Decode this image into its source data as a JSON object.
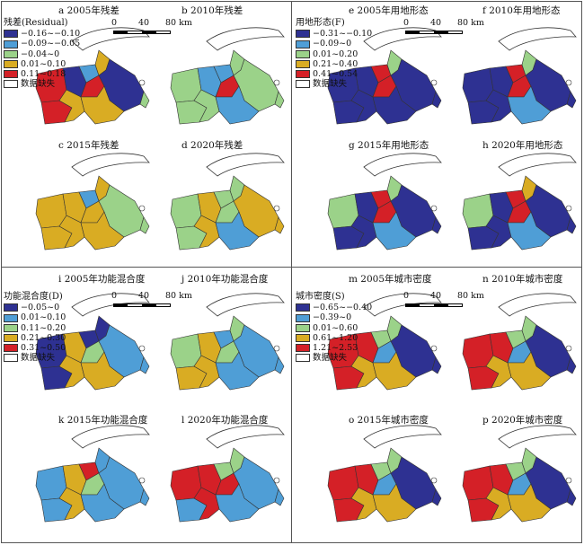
{
  "colors": {
    "blue_dark": "#2e3192",
    "blue_light": "#4f9ed6",
    "green": "#9bd289",
    "yellow": "#d9ac23",
    "red": "#d42027",
    "nodata": "#ffffff"
  },
  "scale_bar": {
    "zero": "0",
    "mid": "40",
    "end": "80 km"
  },
  "legends": {
    "residual": {
      "title": "残差(Residual)",
      "items": [
        "−0.16~−0.10",
        "−0.09~−0.05",
        "−0.04~0",
        "0.01~0.10",
        "0.11~0.18",
        "数据缺失"
      ]
    },
    "landuse": {
      "title": "用地形态(F)",
      "items": [
        "−0.31~−0.10",
        "−0.09~0",
        "0.01~0.20",
        "0.21~0.40",
        "0.41~0.54",
        "数据缺失"
      ]
    },
    "mix": {
      "title": "功能混合度(D)",
      "items": [
        "−0.05~0",
        "0.01~0.10",
        "0.11~0.20",
        "0.21~0.30",
        "0.31~0.50",
        "数据缺失"
      ]
    },
    "density": {
      "title": "城市密度(S)",
      "items": [
        "−0.65~−0.40",
        "−0.39~0",
        "0.01~0.60",
        "0.61~1.20",
        "1.21~2.53",
        "数据缺失"
      ]
    }
  },
  "maps": [
    {
      "title": "a 2005年残差",
      "fills": [
        "red",
        "red",
        "blue_dark",
        "yellow",
        "blue_light",
        "red",
        "yellow",
        "blue_dark",
        "green",
        "yellow"
      ]
    },
    {
      "title": "b 2010年残差",
      "fills": [
        "green",
        "green",
        "blue_light",
        "green",
        "blue_light",
        "red",
        "green",
        "green",
        "green",
        "blue_light"
      ]
    },
    {
      "title": "c 2015年残差",
      "fills": [
        "yellow",
        "yellow",
        "yellow",
        "yellow",
        "blue_light",
        "yellow",
        "yellow",
        "green",
        "green",
        "yellow"
      ]
    },
    {
      "title": "d 2020年残差",
      "fills": [
        "green",
        "green",
        "yellow",
        "yellow",
        "green",
        "green",
        "green",
        "yellow",
        "yellow",
        "blue_light"
      ]
    },
    {
      "title": "e 2005年用地形态",
      "fills": [
        "blue_dark",
        "blue_dark",
        "blue_dark",
        "blue_dark",
        "red",
        "red",
        "green",
        "blue_dark",
        "blue_dark",
        "blue_dark"
      ]
    },
    {
      "title": "f 2010年用地形态",
      "fills": [
        "blue_dark",
        "blue_dark",
        "blue_dark",
        "blue_dark",
        "red",
        "red",
        "green",
        "blue_dark",
        "blue_dark",
        "blue_light"
      ]
    },
    {
      "title": "g 2015年用地形态",
      "fills": [
        "green",
        "blue_dark",
        "blue_dark",
        "blue_dark",
        "red",
        "red",
        "green",
        "blue_dark",
        "blue_dark",
        "blue_light"
      ]
    },
    {
      "title": "h 2020年用地形态",
      "fills": [
        "green",
        "blue_dark",
        "blue_dark",
        "blue_dark",
        "red",
        "red",
        "yellow",
        "blue_dark",
        "blue_dark",
        "blue_light"
      ]
    },
    {
      "title": "i 2005年功能混合度",
      "fills": [
        "blue_dark",
        "blue_dark",
        "yellow",
        "yellow",
        "blue_dark",
        "green",
        "blue_dark",
        "blue_light",
        "blue_light",
        "yellow"
      ]
    },
    {
      "title": "j 2010年功能混合度",
      "fills": [
        "green",
        "yellow",
        "yellow",
        "yellow",
        "blue_light",
        "green",
        "green",
        "blue_light",
        "blue_light",
        "blue_light"
      ]
    },
    {
      "title": "k 2015年功能混合度",
      "fills": [
        "blue_light",
        "blue_light",
        "yellow",
        "yellow",
        "red",
        "green",
        "blue_light",
        "blue_light",
        "blue_light",
        "blue_light"
      ]
    },
    {
      "title": "l 2020年功能混合度",
      "fills": [
        "red",
        "blue_light",
        "red",
        "red",
        "green",
        "red",
        "green",
        "blue_light",
        "blue_light",
        "blue_light"
      ]
    },
    {
      "title": "m 2005年城市密度",
      "fills": [
        "red",
        "red",
        "red",
        "yellow",
        "green",
        "blue_light",
        "green",
        "blue_dark",
        "blue_dark",
        "yellow"
      ]
    },
    {
      "title": "n 2010年城市密度",
      "fills": [
        "red",
        "red",
        "red",
        "yellow",
        "green",
        "blue_light",
        "green",
        "blue_dark",
        "blue_dark",
        "yellow"
      ]
    },
    {
      "title": "o 2015年城市密度",
      "fills": [
        "red",
        "red",
        "red",
        "yellow",
        "green",
        "blue_light",
        "green",
        "blue_dark",
        "blue_dark",
        "yellow"
      ]
    },
    {
      "title": "p 2020年城市密度",
      "fills": [
        "red",
        "red",
        "red",
        "yellow",
        "green",
        "blue_light",
        "green",
        "blue_dark",
        "blue_dark",
        "yellow"
      ]
    }
  ]
}
